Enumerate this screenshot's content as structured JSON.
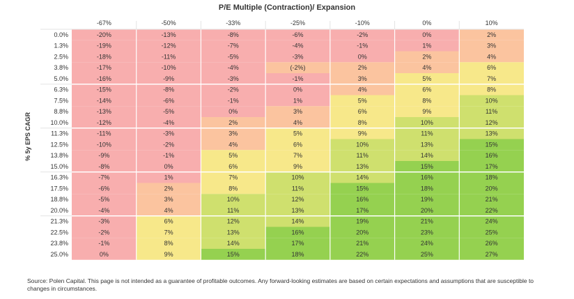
{
  "title": "P/E Multiple (Contraction)/ Expansion",
  "ylabel": "% 5y EPS CAGR",
  "source": "Source: Polen Capital. This page is not intended as a guarantee of profitable outcomes. Any forward-looking estimates are based on certain expectations and assumptions that are susceptible to changes in circumstances.",
  "colors": {
    "red": "#f8aeae",
    "orange": "#fbc49f",
    "yellow": "#f7e88a",
    "light_green": "#cfe06e",
    "green": "#95d150",
    "grid": "#ffffff"
  },
  "chart_data": {
    "type": "heatmap",
    "title": "P/E Multiple (Contraction)/ Expansion",
    "xlabel": "P/E Multiple (Contraction)/ Expansion",
    "ylabel": "% 5y EPS CAGR",
    "x": [
      "-67%",
      "-50%",
      "-33%",
      "-25%",
      "-10%",
      "0%",
      "10%"
    ],
    "y": [
      "0.0%",
      "1.3%",
      "2.5%",
      "3.8%",
      "5.0%",
      "6.3%",
      "7.5%",
      "8.8%",
      "10.0%",
      "11.3%",
      "12.5%",
      "13.8%",
      "15.0%",
      "16.3%",
      "17.5%",
      "18.8%",
      "20.0%",
      "21.3%",
      "22.5%",
      "23.8%",
      "25.0%"
    ],
    "values": [
      [
        "-20%",
        "-13%",
        "-8%",
        "-6%",
        "-2%",
        "0%",
        "2%"
      ],
      [
        "-19%",
        "-12%",
        "-7%",
        "-4%",
        "-1%",
        "1%",
        "3%"
      ],
      [
        "-18%",
        "-11%",
        "-5%",
        "-3%",
        "0%",
        "2%",
        "4%"
      ],
      [
        "-17%",
        "-10%",
        "-4%",
        "(-2%)",
        "2%",
        "4%",
        "6%"
      ],
      [
        "-16%",
        "-9%",
        "-3%",
        "-1%",
        "3%",
        "5%",
        "7%"
      ],
      [
        "-15%",
        "-8%",
        "-2%",
        "0%",
        "4%",
        "6%",
        "8%"
      ],
      [
        "-14%",
        "-6%",
        "-1%",
        "1%",
        "5%",
        "8%",
        "10%"
      ],
      [
        "-13%",
        "-5%",
        "0%",
        "3%",
        "6%",
        "9%",
        "11%"
      ],
      [
        "-12%",
        "-4%",
        "2%",
        "4%",
        "8%",
        "10%",
        "12%"
      ],
      [
        "-11%",
        "-3%",
        "3%",
        "5%",
        "9%",
        "11%",
        "13%"
      ],
      [
        "-10%",
        "-2%",
        "4%",
        "6%",
        "10%",
        "13%",
        "15%"
      ],
      [
        "-9%",
        "-1%",
        "5%",
        "7%",
        "11%",
        "14%",
        "16%"
      ],
      [
        "-8%",
        "0%",
        "6%",
        "9%",
        "13%",
        "15%",
        "17%"
      ],
      [
        "-7%",
        "1%",
        "7%",
        "10%",
        "14%",
        "16%",
        "18%"
      ],
      [
        "-6%",
        "2%",
        "8%",
        "11%",
        "15%",
        "18%",
        "20%"
      ],
      [
        "-5%",
        "3%",
        "10%",
        "12%",
        "16%",
        "19%",
        "21%"
      ],
      [
        "-4%",
        "4%",
        "11%",
        "13%",
        "17%",
        "20%",
        "22%"
      ],
      [
        "-3%",
        "6%",
        "12%",
        "14%",
        "19%",
        "21%",
        "24%"
      ],
      [
        "-2%",
        "7%",
        "13%",
        "16%",
        "20%",
        "23%",
        "25%"
      ],
      [
        "-1%",
        "8%",
        "14%",
        "17%",
        "21%",
        "24%",
        "26%"
      ],
      [
        "0%",
        "9%",
        "15%",
        "18%",
        "22%",
        "25%",
        "27%"
      ]
    ],
    "grid": true,
    "legend": "none"
  }
}
